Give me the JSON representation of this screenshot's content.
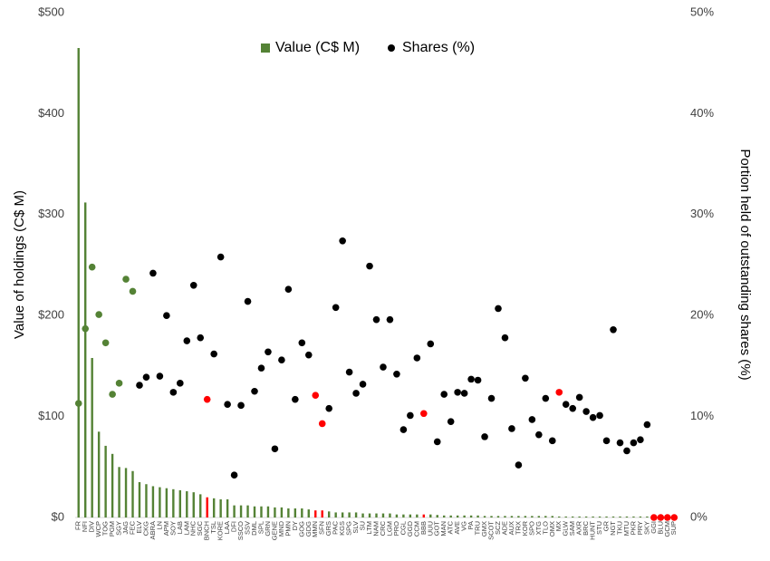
{
  "chart_data": {
    "type": "bar_scatter",
    "categories": [
      "FR",
      "NFI",
      "DIV",
      "WCP",
      "TOG",
      "PGM",
      "SGY",
      "JAG",
      "FEC",
      "ELV",
      "CKG",
      "ABRA",
      "LN",
      "APM",
      "SOY",
      "LAB",
      "LAM",
      "NHC",
      "SGC",
      "BNCH",
      "TSL",
      "KORE",
      "LAA",
      "DFI",
      "SSCO",
      "SSV",
      "DML",
      "SPL",
      "GRN",
      "GENE",
      "MND",
      "PMN",
      "DY",
      "GOG",
      "GDG",
      "MMN",
      "SFN",
      "GRS",
      "PAC",
      "KGS",
      "SPG",
      "SLV",
      "SU",
      "LTM",
      "NAM",
      "CRC",
      "LGM",
      "PRO",
      "CGL",
      "GGD",
      "CCM",
      "BBB",
      "UUU",
      "GOT",
      "MAN",
      "ATC",
      "AVE",
      "VG",
      "PA",
      "TRU",
      "GMX",
      "SCOT",
      "SCZ",
      "ADE",
      "AUX",
      "TRX",
      "KOR",
      "SPO",
      "XTG",
      "TLO",
      "OMX",
      "MX",
      "GLW",
      "SAM",
      "AXR",
      "BRC",
      "HUNT",
      "STU",
      "GR",
      "NGT",
      "TKU",
      "MTU",
      "PKR",
      "PRY",
      "SKY",
      "GGI",
      "BLU",
      "GCM",
      "SUP"
    ],
    "series": [
      {
        "name": "Value (C$ M)",
        "color": "#548235",
        "colors": [
          "#548235",
          "#548235",
          "#548235",
          "#548235",
          "#548235",
          "#548235",
          "#548235",
          "#548235",
          "#548235",
          "#548235",
          "#548235",
          "#548235",
          "#548235",
          "#548235",
          "#548235",
          "#548235",
          "#548235",
          "#548235",
          "#548235",
          "#ff0000",
          "#548235",
          "#548235",
          "#548235",
          "#548235",
          "#548235",
          "#548235",
          "#548235",
          "#548235",
          "#548235",
          "#548235",
          "#548235",
          "#548235",
          "#548235",
          "#548235",
          "#548235",
          "#ff0000",
          "#ff0000",
          "#548235",
          "#548235",
          "#548235",
          "#548235",
          "#548235",
          "#548235",
          "#548235",
          "#548235",
          "#548235",
          "#548235",
          "#548235",
          "#548235",
          "#548235",
          "#548235",
          "#ff0000",
          "#548235",
          "#548235",
          "#548235",
          "#548235",
          "#548235",
          "#548235",
          "#548235",
          "#548235",
          "#548235",
          "#548235",
          "#548235",
          "#548235",
          "#548235",
          "#548235",
          "#548235",
          "#548235",
          "#548235",
          "#548235",
          "#548235",
          "#548235",
          "#548235",
          "#548235",
          "#548235",
          "#548235",
          "#548235",
          "#548235",
          "#548235",
          "#548235",
          "#548235",
          "#548235",
          "#548235",
          "#548235",
          "#548235",
          "#ff0000",
          "#ff0000",
          "#ff0000",
          "#ff0000"
        ],
        "values": [
          465,
          312,
          158,
          85,
          71,
          63,
          50,
          49,
          46,
          35,
          33,
          31,
          30,
          29,
          28,
          27,
          26,
          25,
          23,
          20,
          19,
          18,
          18,
          12,
          12,
          12,
          11,
          11,
          11,
          10,
          10,
          9,
          9,
          9,
          8,
          7,
          7,
          6,
          5,
          5,
          5,
          5,
          4,
          4,
          4,
          4,
          4,
          3,
          3,
          3,
          3,
          3,
          3,
          2.5,
          2,
          2,
          2,
          2,
          2,
          2,
          1.5,
          1.5,
          1.5,
          1.5,
          1.5,
          1.5,
          1.5,
          1.5,
          1.5,
          1.5,
          1.5,
          1,
          1,
          1,
          1,
          1,
          1,
          1,
          1,
          1,
          1,
          1,
          1,
          1,
          1,
          0,
          0,
          0,
          0
        ]
      },
      {
        "name": "Shares (%)",
        "color": "#000000",
        "axis": "y2",
        "colors": [
          "#548235",
          "#548235",
          "#548235",
          "#548235",
          "#548235",
          "#548235",
          "#548235",
          "#548235",
          "#548235",
          "#000000",
          "#000000",
          "#000000",
          "#000000",
          "#000000",
          "#000000",
          "#000000",
          "#000000",
          "#000000",
          "#000000",
          "#ff0000",
          "#000000",
          "#000000",
          "#000000",
          "#000000",
          "#000000",
          "#000000",
          "#000000",
          "#000000",
          "#000000",
          "#000000",
          "#000000",
          "#000000",
          "#000000",
          "#000000",
          "#000000",
          "#ff0000",
          "#ff0000",
          "#000000",
          "#000000",
          "#000000",
          "#000000",
          "#000000",
          "#000000",
          "#000000",
          "#000000",
          "#000000",
          "#000000",
          "#000000",
          "#000000",
          "#000000",
          "#000000",
          "#ff0000",
          "#000000",
          "#000000",
          "#000000",
          "#000000",
          "#000000",
          "#000000",
          "#000000",
          "#000000",
          "#000000",
          "#000000",
          "#000000",
          "#000000",
          "#000000",
          "#000000",
          "#000000",
          "#000000",
          "#000000",
          "#000000",
          "#000000",
          "#ff0000",
          "#000000",
          "#000000",
          "#000000",
          "#000000",
          "#000000",
          "#000000",
          "#000000",
          "#000000",
          "#000000",
          "#000000",
          "#000000",
          "#000000",
          "#000000",
          "#ff0000",
          "#ff0000",
          "#ff0000",
          "#ff0000"
        ],
        "values": [
          11.3,
          18.7,
          24.8,
          20.1,
          17.3,
          12.2,
          13.3,
          23.6,
          22.4,
          13.1,
          13.9,
          24.2,
          14.0,
          20.0,
          12.4,
          13.3,
          17.5,
          23.0,
          17.8,
          11.7,
          16.2,
          25.8,
          11.2,
          4.2,
          11.1,
          21.4,
          12.5,
          14.8,
          16.4,
          6.8,
          15.6,
          22.6,
          11.7,
          17.3,
          16.1,
          12.1,
          9.3,
          10.8,
          20.8,
          27.4,
          14.4,
          12.3,
          13.2,
          24.9,
          19.6,
          14.9,
          19.6,
          14.2,
          8.7,
          10.1,
          15.8,
          10.3,
          17.2,
          7.5,
          12.2,
          9.5,
          12.4,
          12.3,
          13.7,
          13.6,
          8.0,
          11.8,
          20.7,
          17.8,
          8.8,
          5.2,
          13.8,
          9.7,
          8.2,
          11.8,
          7.6,
          12.4,
          11.2,
          10.8,
          11.9,
          10.5,
          9.9,
          10.1,
          7.6,
          18.6,
          7.4,
          6.6,
          7.4,
          7.7,
          9.2,
          0,
          0,
          0,
          0
        ]
      }
    ],
    "y_label": "Value of holdings (C$ M)",
    "y2_label": "Portion held of outstanding shares (%)",
    "ylim": [
      0,
      500
    ],
    "yticks": [
      {
        "value": 0,
        "label": "$0"
      },
      {
        "value": 100,
        "label": "$100"
      },
      {
        "value": 200,
        "label": "$200"
      },
      {
        "value": 300,
        "label": "$300"
      },
      {
        "value": 400,
        "label": "$400"
      },
      {
        "value": 500,
        "label": "$500"
      }
    ],
    "y2lim": [
      0,
      50
    ],
    "y2ticks": [
      {
        "value": 0,
        "label": "0%"
      },
      {
        "value": 10,
        "label": "10%"
      },
      {
        "value": 20,
        "label": "20%"
      },
      {
        "value": 30,
        "label": "30%"
      },
      {
        "value": 40,
        "label": "40%"
      },
      {
        "value": 50,
        "label": "50%"
      }
    ],
    "legend": "top"
  }
}
